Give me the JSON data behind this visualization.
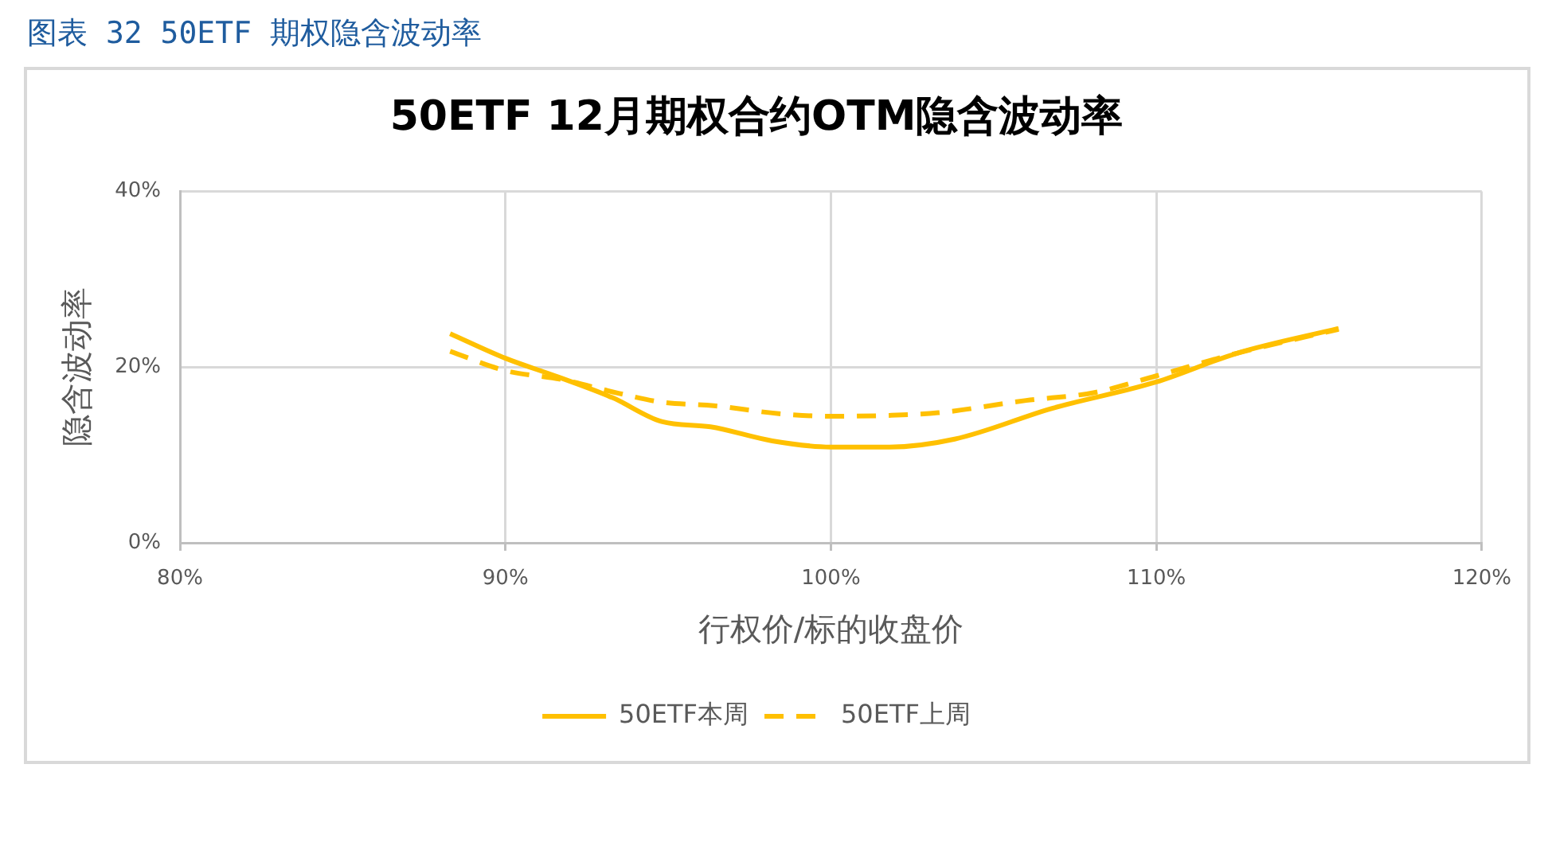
{
  "chart_data": {
    "type": "line",
    "title": "50ETF 12月期权合约OTM隐含波动率",
    "xlabel": "行权价/标的收盘价",
    "ylabel": "隐含波动率",
    "annotations": [
      "图表 32 50ETF 期权隐含波动率"
    ],
    "xlim": [
      80,
      120
    ],
    "xticks": [
      {
        "value": 80,
        "label": "80%"
      },
      {
        "value": 90,
        "label": "90%"
      },
      {
        "value": 100,
        "label": "100%"
      },
      {
        "value": 110,
        "label": "110%"
      },
      {
        "value": 120,
        "label": "120%"
      }
    ],
    "ylim": [
      0,
      40
    ],
    "yticks": [
      {
        "value": 0,
        "label": "0%"
      },
      {
        "value": 20,
        "label": "20%"
      },
      {
        "value": 40,
        "label": "40%"
      }
    ],
    "grid": true,
    "legend": "bottom",
    "marker": "none",
    "series": [
      {
        "name": "50ETF本周",
        "color": "#ffc000",
        "line_style": "solid",
        "x": [
          88.3,
          90.0,
          91.6,
          93.3,
          94.8,
          96.3,
          98.2,
          100.0,
          101.8,
          103.8,
          106.8,
          110.0,
          112.5,
          115.6
        ],
        "values": [
          23.8,
          21.0,
          18.9,
          16.5,
          13.8,
          13.2,
          11.6,
          10.9,
          10.9,
          11.8,
          15.3,
          18.3,
          21.6,
          24.4
        ]
      },
      {
        "name": "50ETF上周",
        "color": "#ffc000",
        "line_style": "dashed",
        "x": [
          88.3,
          90.0,
          91.7,
          93.5,
          94.8,
          96.4,
          98.4,
          100.0,
          101.8,
          103.3,
          106.0,
          108.1,
          110.0,
          112.5,
          115.6
        ],
        "values": [
          21.8,
          19.6,
          18.6,
          17.0,
          16.0,
          15.6,
          14.7,
          14.4,
          14.5,
          14.8,
          16.2,
          17.1,
          19.0,
          21.6,
          24.3
        ]
      }
    ]
  }
}
